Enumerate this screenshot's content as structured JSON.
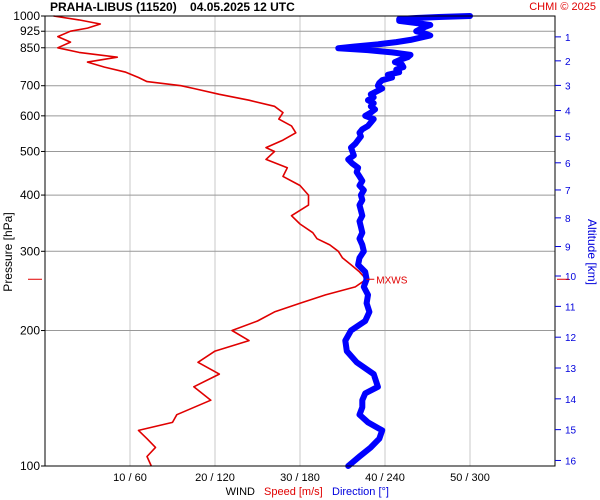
{
  "header": {
    "title": "PRAHA-LIBUS (11520)    04.05.2025 12 UTC",
    "copyright": "CHMI © 2025"
  },
  "colors": {
    "speed": "#e00000",
    "direction": "#0000ff",
    "grid": "#999999",
    "right_axis": "#0000dd"
  },
  "chart_data": {
    "type": "line",
    "title": "PRAHA-LIBUS (11520)    04.05.2025 12 UTC",
    "y_axis": {
      "label": "Pressure [hPa]",
      "scale": "log",
      "range": [
        1000,
        100
      ],
      "ticks": [
        100,
        200,
        300,
        400,
        500,
        600,
        700,
        850,
        925,
        1000
      ]
    },
    "y2_axis": {
      "label": "Altitude [km]",
      "ticks": [
        1,
        2,
        3,
        4,
        5,
        6,
        7,
        8,
        9,
        10,
        11,
        12,
        13,
        14,
        15,
        16
      ]
    },
    "x_axis": {
      "label": "WIND",
      "speed_label": "Speed [m/s]",
      "direction_label": "Direction [°]",
      "ticks": [
        "10 / 60",
        "20 / 120",
        "30 / 180",
        "40 / 240",
        "50 / 300"
      ],
      "speed_range": [
        0,
        60
      ],
      "direction_range": [
        0,
        360
      ]
    },
    "annotation": {
      "label": "MXWS",
      "pressure": 260,
      "speed": 37.8
    },
    "series": [
      {
        "name": "Speed [m/s]",
        "units": "m/s",
        "points": [
          [
            1000,
            1.0
          ],
          [
            980,
            4.0
          ],
          [
            960,
            6.5
          ],
          [
            940,
            5.0
          ],
          [
            925,
            3.0
          ],
          [
            900,
            1.5
          ],
          [
            875,
            3.0
          ],
          [
            850,
            1.5
          ],
          [
            830,
            4.0
          ],
          [
            810,
            8.5
          ],
          [
            790,
            5.0
          ],
          [
            770,
            7.0
          ],
          [
            750,
            9.5
          ],
          [
            730,
            11.0
          ],
          [
            715,
            12.0
          ],
          [
            700,
            16.0
          ],
          [
            690,
            17.5
          ],
          [
            670,
            20.5
          ],
          [
            650,
            24.0
          ],
          [
            630,
            27.0
          ],
          [
            610,
            28.0
          ],
          [
            590,
            27.5
          ],
          [
            570,
            29.0
          ],
          [
            550,
            29.5
          ],
          [
            530,
            28.0
          ],
          [
            510,
            26.0
          ],
          [
            500,
            27.0
          ],
          [
            480,
            26.0
          ],
          [
            460,
            28.5
          ],
          [
            440,
            28.0
          ],
          [
            420,
            30.0
          ],
          [
            400,
            31.0
          ],
          [
            380,
            31.0
          ],
          [
            360,
            29.0
          ],
          [
            345,
            30.0
          ],
          [
            330,
            31.5
          ],
          [
            320,
            32.0
          ],
          [
            310,
            33.5
          ],
          [
            300,
            34.5
          ],
          [
            290,
            35.0
          ],
          [
            280,
            36.0
          ],
          [
            270,
            37.0
          ],
          [
            260,
            37.8
          ],
          [
            250,
            36.5
          ],
          [
            240,
            33.0
          ],
          [
            230,
            30.0
          ],
          [
            220,
            27.0
          ],
          [
            210,
            25.0
          ],
          [
            200,
            22.0
          ],
          [
            190,
            24.0
          ],
          [
            180,
            20.0
          ],
          [
            170,
            18.0
          ],
          [
            160,
            20.5
          ],
          [
            150,
            17.5
          ],
          [
            140,
            19.5
          ],
          [
            130,
            15.5
          ],
          [
            125,
            15.0
          ],
          [
            120,
            11.0
          ],
          [
            115,
            12.0
          ],
          [
            110,
            13.0
          ],
          [
            105,
            12.0
          ],
          [
            100,
            12.5
          ]
        ]
      },
      {
        "name": "Direction [°]",
        "units": "deg",
        "points": [
          [
            1000,
            300
          ],
          [
            995,
            278
          ],
          [
            990,
            262
          ],
          [
            985,
            250
          ],
          [
            975,
            250
          ],
          [
            965,
            262
          ],
          [
            955,
            272
          ],
          [
            945,
            268
          ],
          [
            935,
            265
          ],
          [
            925,
            262
          ],
          [
            915,
            268
          ],
          [
            905,
            272
          ],
          [
            895,
            265
          ],
          [
            885,
            258
          ],
          [
            875,
            248
          ],
          [
            865,
            235
          ],
          [
            855,
            218
          ],
          [
            848,
            207
          ],
          [
            840,
            228
          ],
          [
            830,
            245
          ],
          [
            820,
            258
          ],
          [
            810,
            256
          ],
          [
            800,
            251
          ],
          [
            790,
            247
          ],
          [
            780,
            252
          ],
          [
            770,
            253
          ],
          [
            760,
            248
          ],
          [
            750,
            250
          ],
          [
            740,
            242
          ],
          [
            730,
            245
          ],
          [
            720,
            238
          ],
          [
            710,
            236
          ],
          [
            700,
            235
          ],
          [
            690,
            238
          ],
          [
            680,
            234
          ],
          [
            670,
            230
          ],
          [
            660,
            232
          ],
          [
            650,
            228
          ],
          [
            640,
            232
          ],
          [
            630,
            230
          ],
          [
            620,
            233
          ],
          [
            610,
            230
          ],
          [
            600,
            226
          ],
          [
            590,
            232
          ],
          [
            580,
            230
          ],
          [
            570,
            228
          ],
          [
            560,
            224
          ],
          [
            550,
            222
          ],
          [
            540,
            223
          ],
          [
            530,
            221
          ],
          [
            520,
            219
          ],
          [
            510,
            216
          ],
          [
            500,
            217
          ],
          [
            490,
            218
          ],
          [
            480,
            214
          ],
          [
            470,
            217
          ],
          [
            460,
            221
          ],
          [
            450,
            220
          ],
          [
            440,
            222
          ],
          [
            430,
            224
          ],
          [
            420,
            222
          ],
          [
            410,
            225
          ],
          [
            400,
            223
          ],
          [
            390,
            224
          ],
          [
            380,
            222
          ],
          [
            370,
            223
          ],
          [
            360,
            224
          ],
          [
            350,
            222
          ],
          [
            340,
            223
          ],
          [
            330,
            224
          ],
          [
            320,
            222
          ],
          [
            310,
            224
          ],
          [
            300,
            225
          ],
          [
            290,
            222
          ],
          [
            280,
            221
          ],
          [
            270,
            226
          ],
          [
            260,
            227
          ],
          [
            250,
            225
          ],
          [
            240,
            228
          ],
          [
            230,
            227
          ],
          [
            220,
            229
          ],
          [
            210,
            226
          ],
          [
            200,
            216
          ],
          [
            190,
            212
          ],
          [
            180,
            213
          ],
          [
            170,
            220
          ],
          [
            160,
            232
          ],
          [
            150,
            235
          ],
          [
            145,
            226
          ],
          [
            140,
            224
          ],
          [
            135,
            224
          ],
          [
            130,
            222
          ],
          [
            125,
            228
          ],
          [
            120,
            238
          ],
          [
            115,
            236
          ],
          [
            110,
            230
          ],
          [
            105,
            222
          ],
          [
            100,
            214
          ]
        ]
      }
    ]
  }
}
